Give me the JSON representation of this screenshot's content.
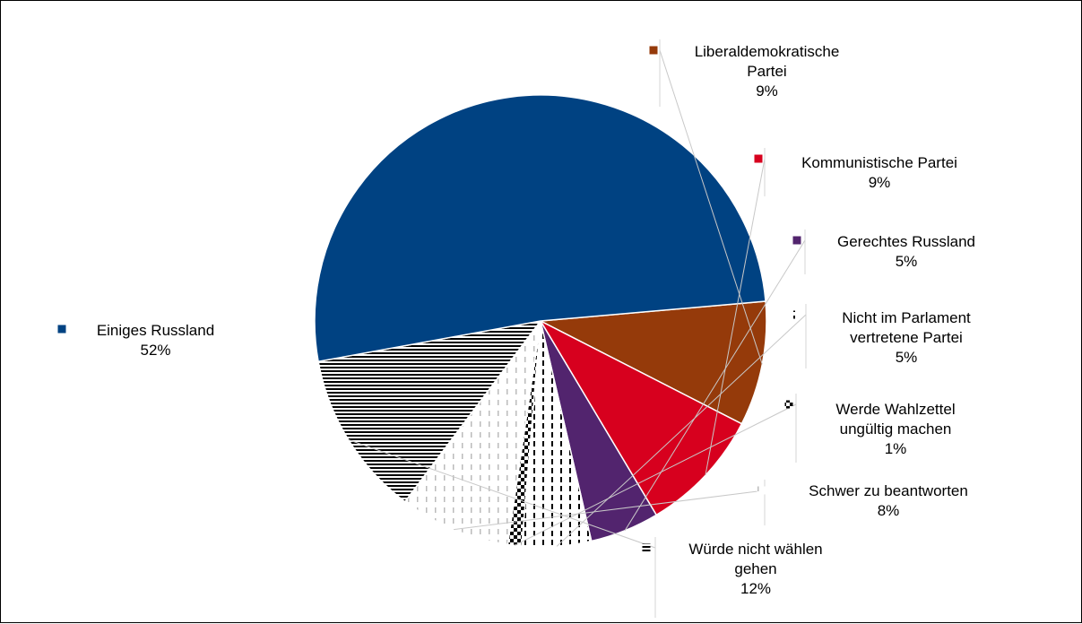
{
  "chart_data": {
    "type": "pie",
    "title": "",
    "legend": "none",
    "slices": [
      {
        "label": "Liberaldemokratische Partei",
        "line1": "Liberaldemokratische",
        "line2": "Partei",
        "value": 9,
        "pct_label": "9%",
        "color": "#953A0A",
        "fill": "solid"
      },
      {
        "label": "Kommunistische Partei",
        "line1": "Kommunistische Partei",
        "line2": "",
        "value": 9,
        "pct_label": "9%",
        "color": "#D7001E",
        "fill": "solid"
      },
      {
        "label": "Gerechtes Russland",
        "line1": "Gerechtes Russland",
        "line2": "",
        "value": 5,
        "pct_label": "5%",
        "color": "#52246E",
        "fill": "solid"
      },
      {
        "label": "Nicht im Parlament vertretene Partei",
        "line1": "Nicht im Parlament",
        "line2": "vertretene Partei",
        "value": 5,
        "pct_label": "5%",
        "color": "#000000",
        "fill": "vertical-dashes"
      },
      {
        "label": "Werde Wahlzettel ungültig machen",
        "line1": "Werde Wahlzettel",
        "line2": "ungültig machen",
        "value": 1,
        "pct_label": "1%",
        "color": "#000000",
        "fill": "checker"
      },
      {
        "label": "Schwer zu beantworten",
        "line1": "Schwer zu beantworten",
        "line2": "",
        "value": 8,
        "pct_label": "8%",
        "color": "#BBBBBB",
        "fill": "light-dashes"
      },
      {
        "label": "Würde nicht wählen gehen",
        "line1": "Würde nicht wählen",
        "line2": "gehen",
        "value": 12,
        "pct_label": "12%",
        "color": "#000000",
        "fill": "horizontal-lines"
      },
      {
        "label": "Einiges Russland",
        "line1": "Einiges Russland",
        "line2": "",
        "value": 52,
        "pct_label": "52%",
        "color": "#004282",
        "fill": "solid"
      }
    ]
  }
}
